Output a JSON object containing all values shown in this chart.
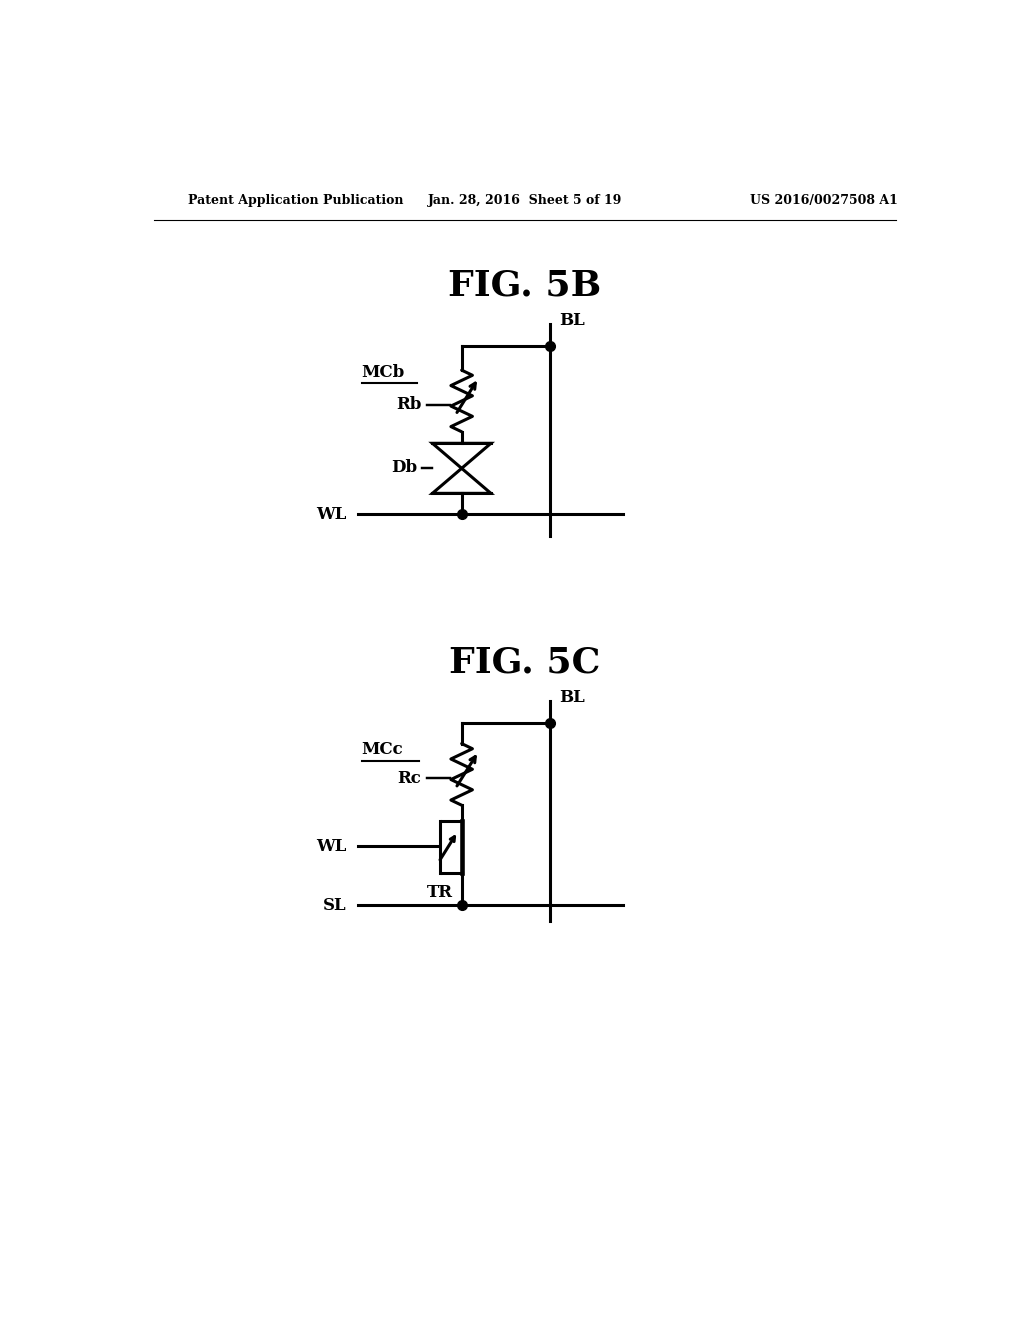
{
  "bg_color": "#ffffff",
  "text_color": "#000000",
  "header_left": "Patent Application Publication",
  "header_center": "Jan. 28, 2016  Sheet 5 of 19",
  "header_right": "US 2016/0027508 A1",
  "fig5b_title": "FIG. 5B",
  "fig5c_title": "FIG. 5C",
  "line_width": 2.2,
  "dot_size": 7
}
